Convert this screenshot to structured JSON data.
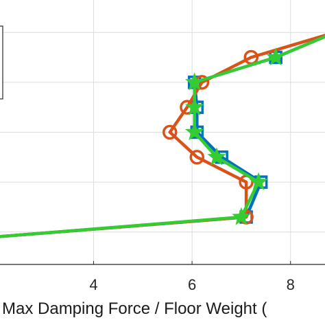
{
  "chart_data": {
    "type": "line",
    "title": "",
    "xlabel": "Max Damping Force / Floor Weight (",
    "ylabel": "",
    "xlim": [
      2.1,
      8.7
    ],
    "ylim": [
      0.35,
      5.65
    ],
    "xticks": [
      4,
      6,
      8
    ],
    "xtick_labels": [
      "4",
      "6",
      "8"
    ],
    "grid": true,
    "legend": "top-left, partially cropped (box visible, entries not readable)",
    "series": [
      {
        "color": "#0072BD",
        "marker": "square",
        "x": [
          2.0,
          7.1,
          7.4,
          6.6,
          6.1,
          6.1,
          6.05,
          7.7,
          8.9
        ],
        "y": [
          0.9,
          1.3,
          2.0,
          2.5,
          3.0,
          3.5,
          4.0,
          4.5,
          5.0
        ]
      },
      {
        "color": "#D95319",
        "marker": "circle",
        "x": [
          2.0,
          7.1,
          7.1,
          6.1,
          5.55,
          5.9,
          6.2,
          7.2,
          8.9
        ],
        "y": [
          0.9,
          1.3,
          2.0,
          2.5,
          3.0,
          3.5,
          4.0,
          4.5,
          5.0
        ]
      },
      {
        "color": "#33CC33",
        "marker": "star",
        "x": [
          2.0,
          7.0,
          7.35,
          6.5,
          6.05,
          6.05,
          6.05,
          7.7,
          8.9
        ],
        "y": [
          0.9,
          1.3,
          2.0,
          2.5,
          3.0,
          3.5,
          4.0,
          4.5,
          5.0
        ]
      }
    ]
  }
}
